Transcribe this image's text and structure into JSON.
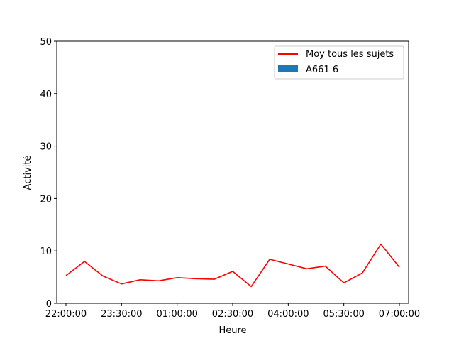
{
  "chart_data": {
    "type": "line",
    "xlabel": "Heure",
    "ylabel": "Activité",
    "ylim": [
      0,
      50
    ],
    "yticks": [
      0,
      10,
      20,
      30,
      40,
      50
    ],
    "xticks": [
      "22:00:00",
      "23:30:00",
      "01:00:00",
      "02:30:00",
      "04:00:00",
      "05:30:00",
      "07:00:00"
    ],
    "x_minutes_since_start_per_point": 30,
    "legend_position": "top-right",
    "series": [
      {
        "name": "Moy tous les sujets",
        "kind": "line",
        "color": "#ff0000",
        "values": [
          5.3,
          8.0,
          5.2,
          3.7,
          4.5,
          4.3,
          4.9,
          4.7,
          4.6,
          6.1,
          3.2,
          8.4,
          7.5,
          6.6,
          7.1,
          3.9,
          5.8,
          11.3,
          6.9
        ]
      },
      {
        "name": "A661 6",
        "kind": "bar",
        "color": "#1f77b4",
        "values": []
      }
    ]
  }
}
